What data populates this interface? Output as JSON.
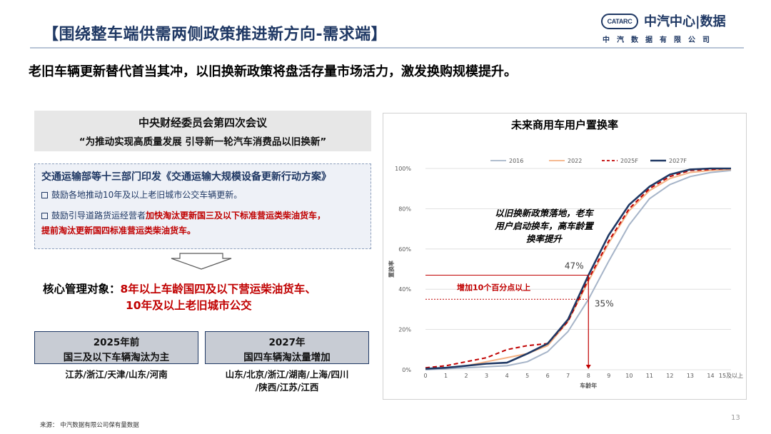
{
  "header": {
    "title": "【围绕整车端供需两侧政策推进新方向-需求端】",
    "logo_mark": "CATARC",
    "logo_name": "中汽中心|数据",
    "logo_sub": "中汽数据有限公司"
  },
  "subtitle": "老旧车辆更新替代首当其冲，以旧换新政策将盘活存量市场活力，激发换购规模提升。",
  "meeting": {
    "title": "中央财经委员会第四次会议",
    "quote": "“为推动实现高质量发展 引导新一轮汽车消费品以旧换新”"
  },
  "policy": {
    "title": "交通运输部等十三部门印发《交通运输大规模设备更新行动方案》",
    "item1": "鼓励各地推动10年及以上老旧城市公交车辆更新。",
    "item2_prefix": "鼓励引导道路货运经营者",
    "item2_red1": "加快淘汰更新国三及以下标准营运类柴油货车，",
    "item2_red2": "提前淘汰更新国四标准营运类柴油货车。"
  },
  "core": {
    "label": "核心管理对象：",
    "value_line1": "8年以上车龄国四及以下营运柴油货车、",
    "value_line2": "10年及以上老旧城市公交"
  },
  "compare": {
    "left_year": "2025年前",
    "left_desc": "国三及以下车辆淘汰为主",
    "left_cities": "江苏/浙江/天津/山东/河南",
    "right_year": "2027年",
    "right_desc": "国四车辆淘汰量增加",
    "right_cities_line1": "山东/北京/浙江/湖南/上海/四川",
    "right_cities_line2": "/陕西/江苏/江西"
  },
  "chart_data": {
    "type": "line",
    "title": "未来商用车用户置换率",
    "xlabel": "车龄年",
    "ylabel": "置换率",
    "categories": [
      "0",
      "1",
      "2",
      "3",
      "4",
      "5",
      "6",
      "7",
      "8",
      "9",
      "10",
      "11",
      "12",
      "13",
      "14",
      "15及以上"
    ],
    "ylim": [
      0,
      100
    ],
    "yticks": [
      "0%",
      "20%",
      "40%",
      "60%",
      "80%",
      "100%"
    ],
    "series": [
      {
        "name": "2016",
        "color": "#a6b4c8",
        "dash": false,
        "values": [
          0,
          0.5,
          1,
          1.5,
          2,
          4,
          9,
          19,
          35,
          54,
          72,
          85,
          92,
          96,
          98,
          99
        ]
      },
      {
        "name": "2022",
        "color": "#f4b183",
        "dash": false,
        "values": [
          0.5,
          1,
          2,
          4,
          6,
          8,
          12,
          24,
          44,
          63,
          79,
          89,
          95,
          98,
          99,
          99.5
        ]
      },
      {
        "name": "2025F",
        "color": "#c00000",
        "dash": true,
        "values": [
          1,
          2,
          4,
          6,
          10,
          12,
          13,
          24,
          45,
          64,
          80,
          90,
          96,
          99,
          99.5,
          100
        ]
      },
      {
        "name": "2027F",
        "color": "#1f3864",
        "dash": false,
        "values": [
          0.5,
          1,
          2,
          3,
          3.5,
          8,
          13,
          25,
          47,
          67,
          82,
          91,
          97,
          99.5,
          100,
          100
        ]
      }
    ],
    "annotations": {
      "note": "以旧换新政策落地，老车用户启动换车，高车龄置换率提升",
      "note_line1": "以旧换新政策落地，老车",
      "note_line2": "用户启动换车，高车龄置",
      "note_line3": "换率提升",
      "high_label": "47%",
      "low_label": "35%",
      "high_value": 47,
      "low_value": 35,
      "increase_text": "增加10个百分点以上",
      "marker_category": "8"
    }
  },
  "footer": {
    "source": "来源： 中汽数据有限公司保有量数据",
    "page": "13"
  },
  "colors": {
    "brand": "#1f3864",
    "accent_red": "#c00000",
    "panel_gray": "#e7e7e7",
    "panel_blue": "#eef1f7"
  }
}
